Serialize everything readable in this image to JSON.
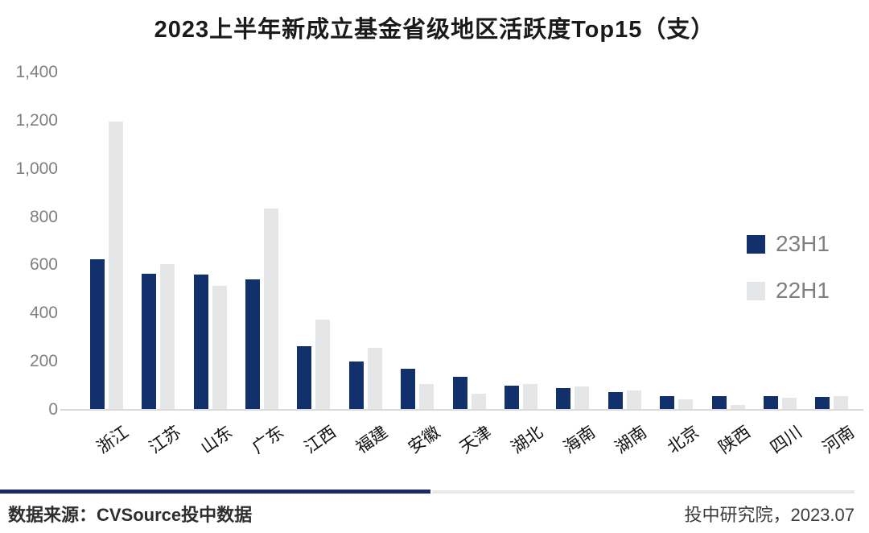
{
  "title": "2023上半年新成立基金省级地区活跃度Top15（支）",
  "colors": {
    "series_23h1": "#12306b",
    "series_22h1": "#e5e6e8",
    "axis_line": "#d9d9d9",
    "tick_text": "#808080",
    "divider_dark": "#1b2a66",
    "divider_light": "#e8e8e8"
  },
  "chart_data": {
    "type": "bar",
    "title": "2023上半年新成立基金省级地区活跃度Top15（支）",
    "categories": [
      "浙江",
      "江苏",
      "山东",
      "广东",
      "江西",
      "福建",
      "安徽",
      "天津",
      "湖北",
      "海南",
      "湖南",
      "北京",
      "陕西",
      "四川",
      "河南"
    ],
    "series": [
      {
        "name": "23H1",
        "color": "#12306b",
        "values": [
          625,
          565,
          560,
          540,
          265,
          200,
          172,
          138,
          101,
          91,
          73,
          58,
          56,
          56,
          52
        ]
      },
      {
        "name": "22H1",
        "color": "#e5e6e8",
        "values": [
          1195,
          605,
          515,
          835,
          375,
          258,
          108,
          66,
          107,
          97,
          81,
          44,
          21,
          49,
          58
        ]
      }
    ],
    "xlabel": "",
    "ylabel": "",
    "ylim": [
      0,
      1400
    ],
    "ytick_values": [
      1400,
      1200,
      1000,
      800,
      600,
      400,
      200,
      0
    ],
    "ytick_labels": [
      "1,400",
      "1,200",
      "1,000",
      "800",
      "600",
      "400",
      "200",
      "0"
    ],
    "grid": false,
    "legend_position": "right",
    "legend": [
      "23H1",
      "22H1"
    ]
  },
  "footer": {
    "source": "数据来源：CVSource投中数据",
    "credit": "投中研究院，2023.07"
  }
}
